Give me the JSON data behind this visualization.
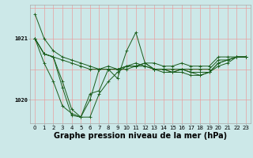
{
  "xlabel": "Graphe pression niveau de la mer (hPa)",
  "bg_color": "#cce8e8",
  "grid_color_v": "#e8a0a0",
  "grid_color_h": "#e8a0a0",
  "line_color": "#1a5c1a",
  "hours": [
    0,
    1,
    2,
    3,
    4,
    5,
    6,
    7,
    8,
    9,
    10,
    11,
    12,
    13,
    14,
    15,
    16,
    17,
    18,
    19,
    20,
    21,
    22,
    23
  ],
  "series": [
    [
      1021.4,
      1021.0,
      1020.8,
      1020.7,
      1020.65,
      1020.6,
      1020.55,
      1020.5,
      1020.5,
      1020.5,
      1020.5,
      1020.55,
      1020.6,
      1020.6,
      1020.55,
      1020.55,
      1020.6,
      1020.55,
      1020.55,
      1020.55,
      1020.7,
      1020.7,
      1020.7,
      1020.7
    ],
    [
      1021.0,
      1020.75,
      1020.7,
      1020.65,
      1020.6,
      1020.55,
      1020.5,
      1020.5,
      1020.5,
      1020.5,
      1020.55,
      1020.55,
      1020.55,
      1020.5,
      1020.5,
      1020.5,
      1020.5,
      1020.5,
      1020.5,
      1020.5,
      1020.65,
      1020.65,
      1020.7,
      1020.7
    ],
    [
      1021.0,
      1020.75,
      1020.7,
      1020.3,
      1019.85,
      1019.72,
      1019.72,
      1020.1,
      1020.3,
      1020.45,
      1020.55,
      1020.55,
      1020.6,
      1020.5,
      1020.5,
      1020.45,
      1020.5,
      1020.45,
      1020.45,
      1020.45,
      1020.6,
      1020.65,
      1020.7,
      1020.7
    ],
    [
      1021.0,
      1020.75,
      1020.7,
      1020.2,
      1019.75,
      1019.72,
      1020.1,
      1020.15,
      1020.5,
      1020.35,
      1020.8,
      1021.1,
      1020.6,
      1020.5,
      1020.45,
      1020.45,
      1020.45,
      1020.4,
      1020.4,
      1020.45,
      1020.55,
      1020.6,
      1020.7,
      1020.7
    ],
    [
      1021.0,
      1020.6,
      1020.3,
      1019.9,
      1019.78,
      1019.72,
      1020.0,
      1020.5,
      1020.55,
      1020.5,
      1020.55,
      1020.6,
      1020.55,
      1020.5,
      1020.5,
      1020.45,
      1020.5,
      1020.45,
      1020.4,
      1020.45,
      1020.6,
      1020.65,
      1020.7,
      1020.7
    ]
  ],
  "ylim": [
    1019.62,
    1021.55
  ],
  "yticks": [
    1020,
    1021
  ],
  "xlim": [
    -0.5,
    23.5
  ],
  "xticks": [
    0,
    1,
    2,
    3,
    4,
    5,
    6,
    7,
    8,
    9,
    10,
    11,
    12,
    13,
    14,
    15,
    16,
    17,
    18,
    19,
    20,
    21,
    22,
    23
  ],
  "tick_label_fontsize": 5.0,
  "xlabel_fontsize": 7.0,
  "fig_width": 3.2,
  "fig_height": 2.0,
  "dpi": 100
}
